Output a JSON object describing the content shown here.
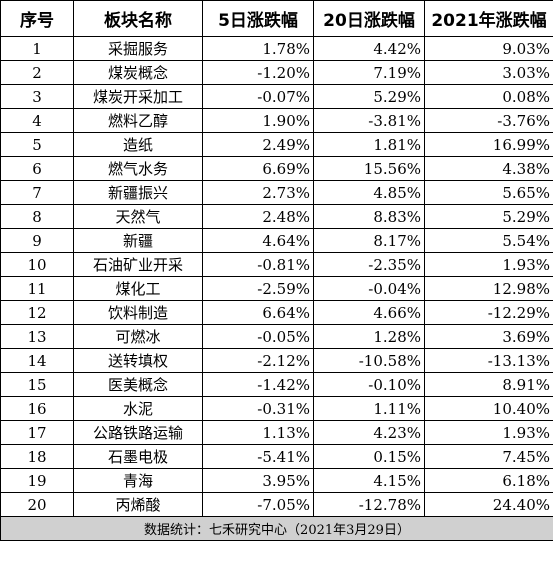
{
  "table": {
    "headers": [
      "序号",
      "板块名称",
      "5日涨跌幅",
      "20日涨跌幅",
      "2021年涨跌幅"
    ],
    "rows": [
      [
        "1",
        "采掘服务",
        "1.78%",
        "4.42%",
        "9.03%"
      ],
      [
        "2",
        "煤炭概念",
        "-1.20%",
        "7.19%",
        "3.03%"
      ],
      [
        "3",
        "煤炭开采加工",
        "-0.07%",
        "5.29%",
        "0.08%"
      ],
      [
        "4",
        "燃料乙醇",
        "1.90%",
        "-3.81%",
        "-3.76%"
      ],
      [
        "5",
        "造纸",
        "2.49%",
        "1.81%",
        "16.99%"
      ],
      [
        "6",
        "燃气水务",
        "6.69%",
        "15.56%",
        "4.38%"
      ],
      [
        "7",
        "新疆振兴",
        "2.73%",
        "4.85%",
        "5.65%"
      ],
      [
        "8",
        "天然气",
        "2.48%",
        "8.83%",
        "5.29%"
      ],
      [
        "9",
        "新疆",
        "4.64%",
        "8.17%",
        "5.54%"
      ],
      [
        "10",
        "石油矿业开采",
        "-0.81%",
        "-2.35%",
        "1.93%"
      ],
      [
        "11",
        "煤化工",
        "-2.59%",
        "-0.04%",
        "12.98%"
      ],
      [
        "12",
        "饮料制造",
        "6.64%",
        "4.66%",
        "-12.29%"
      ],
      [
        "13",
        "可燃冰",
        "-0.05%",
        "1.28%",
        "3.69%"
      ],
      [
        "14",
        "送转填权",
        "-2.12%",
        "-10.58%",
        "-13.13%"
      ],
      [
        "15",
        "医美概念",
        "-1.42%",
        "-0.10%",
        "8.91%"
      ],
      [
        "16",
        "水泥",
        "-0.31%",
        "1.11%",
        "10.40%"
      ],
      [
        "17",
        "公路铁路运输",
        "1.13%",
        "4.23%",
        "1.93%"
      ],
      [
        "18",
        "石墨电极",
        "-5.41%",
        "0.15%",
        "7.45%"
      ],
      [
        "19",
        "青海",
        "3.95%",
        "4.15%",
        "6.18%"
      ],
      [
        "20",
        "丙烯酸",
        "-7.05%",
        "-12.78%",
        "24.40%"
      ]
    ],
    "footer": "数据统计：七禾研究中心（2021年3月29日）"
  },
  "colors": {
    "border": "#000000",
    "footer_background": "#d0d0d0"
  }
}
